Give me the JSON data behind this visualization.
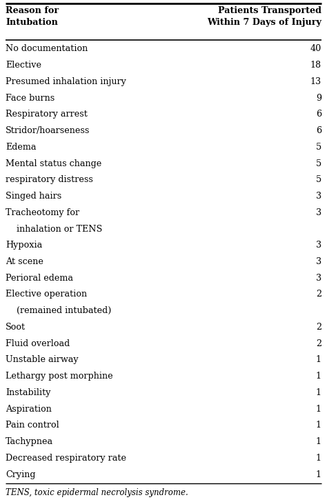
{
  "col1_header_line1": "Reason for",
  "col1_header_line2": "Intubation",
  "col2_header_line1": "Patients Transported",
  "col2_header_line2": "Within 7 Days of Injury",
  "rows": [
    [
      "No documentation",
      "40"
    ],
    [
      "Elective",
      "18"
    ],
    [
      "Presumed inhalation injury",
      "13"
    ],
    [
      "Face burns",
      "9"
    ],
    [
      "Respiratory arrest",
      "6"
    ],
    [
      "Stridor/hoarseness",
      "6"
    ],
    [
      "Edema",
      "5"
    ],
    [
      "Mental status change",
      "5"
    ],
    [
      "respiratory distress",
      "5"
    ],
    [
      "Singed hairs",
      "3"
    ],
    [
      "Tracheotomy for",
      "3"
    ],
    [
      "    inhalation or TENS",
      ""
    ],
    [
      "Hypoxia",
      "3"
    ],
    [
      "At scene",
      "3"
    ],
    [
      "Perioral edema",
      "3"
    ],
    [
      "Elective operation",
      "2"
    ],
    [
      "    (remained intubated)",
      ""
    ],
    [
      "Soot",
      "2"
    ],
    [
      "Fluid overload",
      "2"
    ],
    [
      "Unstable airway",
      "1"
    ],
    [
      "Lethargy post morphine",
      "1"
    ],
    [
      "Instability",
      "1"
    ],
    [
      "Aspiration",
      "1"
    ],
    [
      "Pain control",
      "1"
    ],
    [
      "Tachypnea",
      "1"
    ],
    [
      "Decreased respiratory rate",
      "1"
    ],
    [
      "Crying",
      "1"
    ]
  ],
  "footnote": "TENS, toxic epidermal necrolysis syndrome.",
  "bg_color": "#ffffff",
  "line_color": "#000000",
  "text_color": "#000000",
  "font_size": 9.2,
  "header_font_size": 9.2,
  "footnote_font_size": 8.5
}
